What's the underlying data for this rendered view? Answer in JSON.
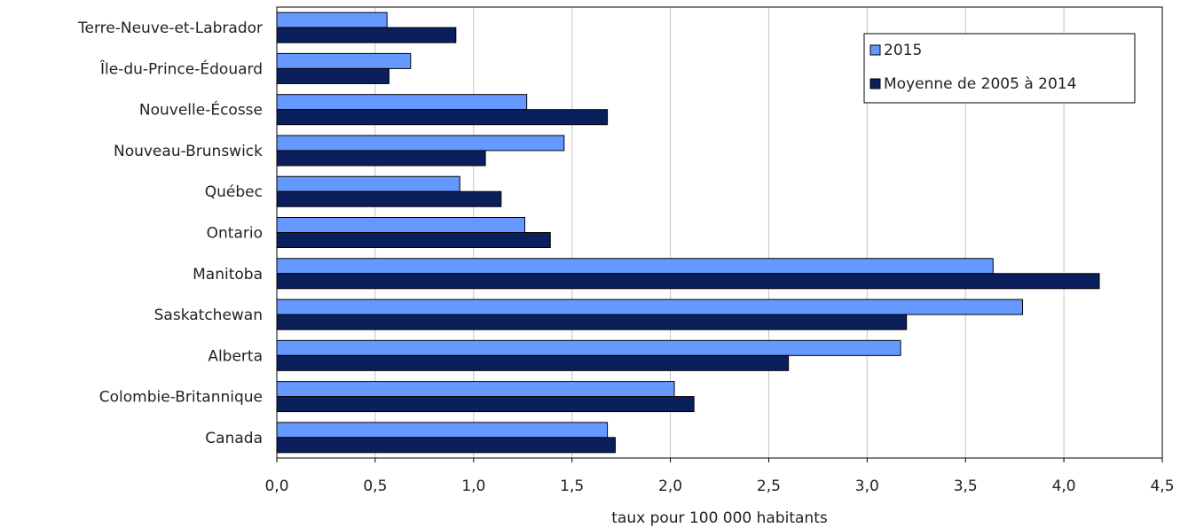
{
  "chart_data": {
    "type": "bar",
    "orientation": "horizontal",
    "title": "",
    "xlabel": "taux pour 100 000 habitants",
    "ylabel": "",
    "xlim": [
      0,
      4.5
    ],
    "x_ticks": [
      "0,0",
      "0,5",
      "1,0",
      "1,5",
      "2,0",
      "2,5",
      "3,0",
      "3,5",
      "4,0",
      "4,5"
    ],
    "grid": "vertical",
    "legend_position": "top-right",
    "categories": [
      "Terre-Neuve-et-Labrador",
      "Île-du-Prince-Édouard",
      "Nouvelle-Écosse",
      "Nouveau-Brunswick",
      "Québec",
      "Ontario",
      "Manitoba",
      "Saskatchewan",
      "Alberta",
      "Colombie-Britannique",
      "Canada"
    ],
    "series": [
      {
        "name": "2015",
        "color": "#6699ff",
        "values": [
          0.56,
          0.68,
          1.27,
          1.46,
          0.93,
          1.26,
          3.64,
          3.79,
          3.17,
          2.02,
          1.68
        ]
      },
      {
        "name": "Moyenne de 2005 à 2014",
        "color": "#0a1f5c",
        "values": [
          0.91,
          0.57,
          1.68,
          1.06,
          1.14,
          1.39,
          4.18,
          3.2,
          2.6,
          2.12,
          1.72
        ]
      }
    ]
  }
}
